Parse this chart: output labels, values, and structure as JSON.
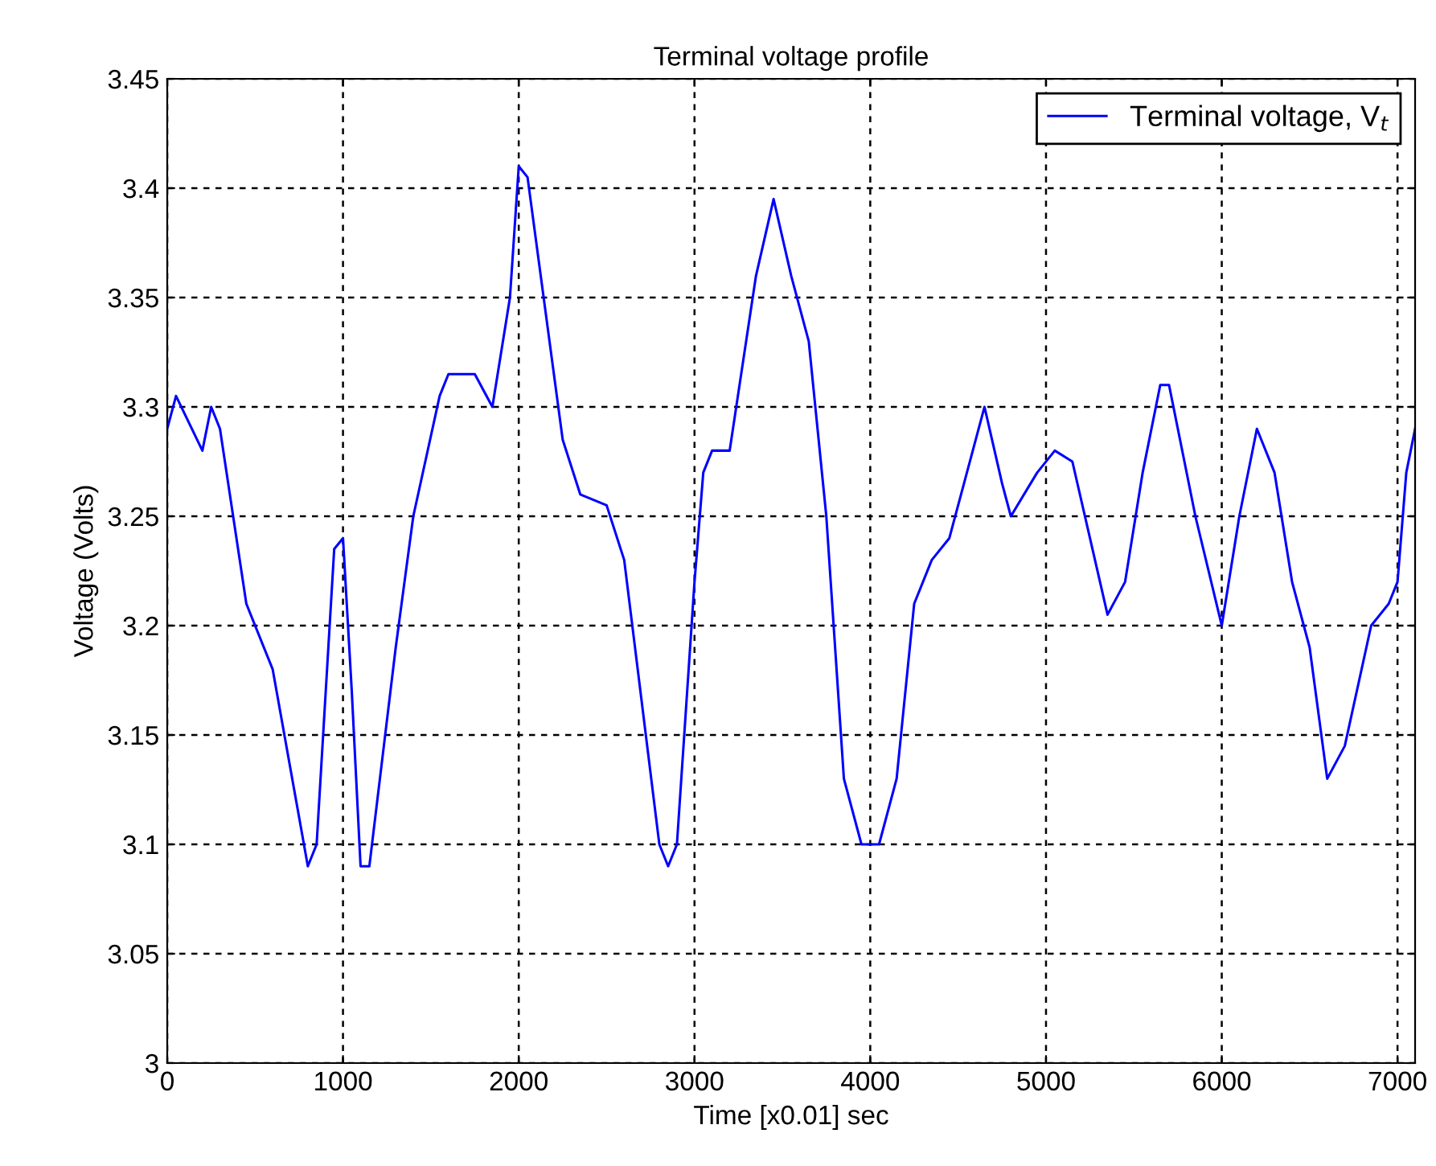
{
  "chart_data": {
    "type": "line",
    "title": "Terminal voltage profile",
    "xlabel": "Time [x0.01] sec",
    "ylabel": "Voltage (Volts)",
    "x": [
      0,
      50,
      200,
      250,
      300,
      450,
      600,
      800,
      850,
      950,
      1000,
      1050,
      1100,
      1150,
      1300,
      1400,
      1550,
      1600,
      1750,
      1850,
      1950,
      2000,
      2050,
      2250,
      2350,
      2500,
      2600,
      2800,
      2850,
      2900,
      3000,
      3050,
      3100,
      3200,
      3350,
      3450,
      3550,
      3650,
      3750,
      3850,
      3950,
      4050,
      4150,
      4250,
      4350,
      4450,
      4550,
      4650,
      4750,
      4800,
      4950,
      5050,
      5150,
      5250,
      5350,
      5450,
      5550,
      5650,
      5700,
      5850,
      6000,
      6100,
      6200,
      6300,
      6400,
      6500,
      6600,
      6700,
      6850,
      6950,
      7000,
      7050,
      7100
    ],
    "series": [
      {
        "name": "Terminal voltage, V$_{t}$",
        "color": "#0000ff",
        "values": [
          3.29,
          3.305,
          3.28,
          3.3,
          3.29,
          3.21,
          3.18,
          3.09,
          3.1,
          3.235,
          3.24,
          3.17,
          3.09,
          3.09,
          3.19,
          3.25,
          3.305,
          3.315,
          3.315,
          3.3,
          3.35,
          3.41,
          3.405,
          3.285,
          3.26,
          3.255,
          3.23,
          3.1,
          3.09,
          3.1,
          3.22,
          3.27,
          3.28,
          3.28,
          3.36,
          3.395,
          3.36,
          3.33,
          3.25,
          3.13,
          3.1,
          3.1,
          3.13,
          3.21,
          3.23,
          3.24,
          3.27,
          3.3,
          3.265,
          3.25,
          3.27,
          3.28,
          3.275,
          3.24,
          3.205,
          3.22,
          3.27,
          3.31,
          3.31,
          3.25,
          3.2,
          3.25,
          3.29,
          3.27,
          3.22,
          3.19,
          3.13,
          3.145,
          3.2,
          3.21,
          3.22,
          3.27,
          3.29
        ]
      }
    ],
    "xlim": [
      0,
      7100
    ],
    "xticks": [
      0,
      1000,
      2000,
      3000,
      4000,
      5000,
      6000,
      7000
    ],
    "ylim": [
      3,
      3.45
    ],
    "yticks": [
      3,
      3.05,
      3.1,
      3.15,
      3.2,
      3.25,
      3.3,
      3.35,
      3.4,
      3.45
    ],
    "grid": true,
    "legend": "top right",
    "line_style": "solid",
    "marker": "none"
  }
}
